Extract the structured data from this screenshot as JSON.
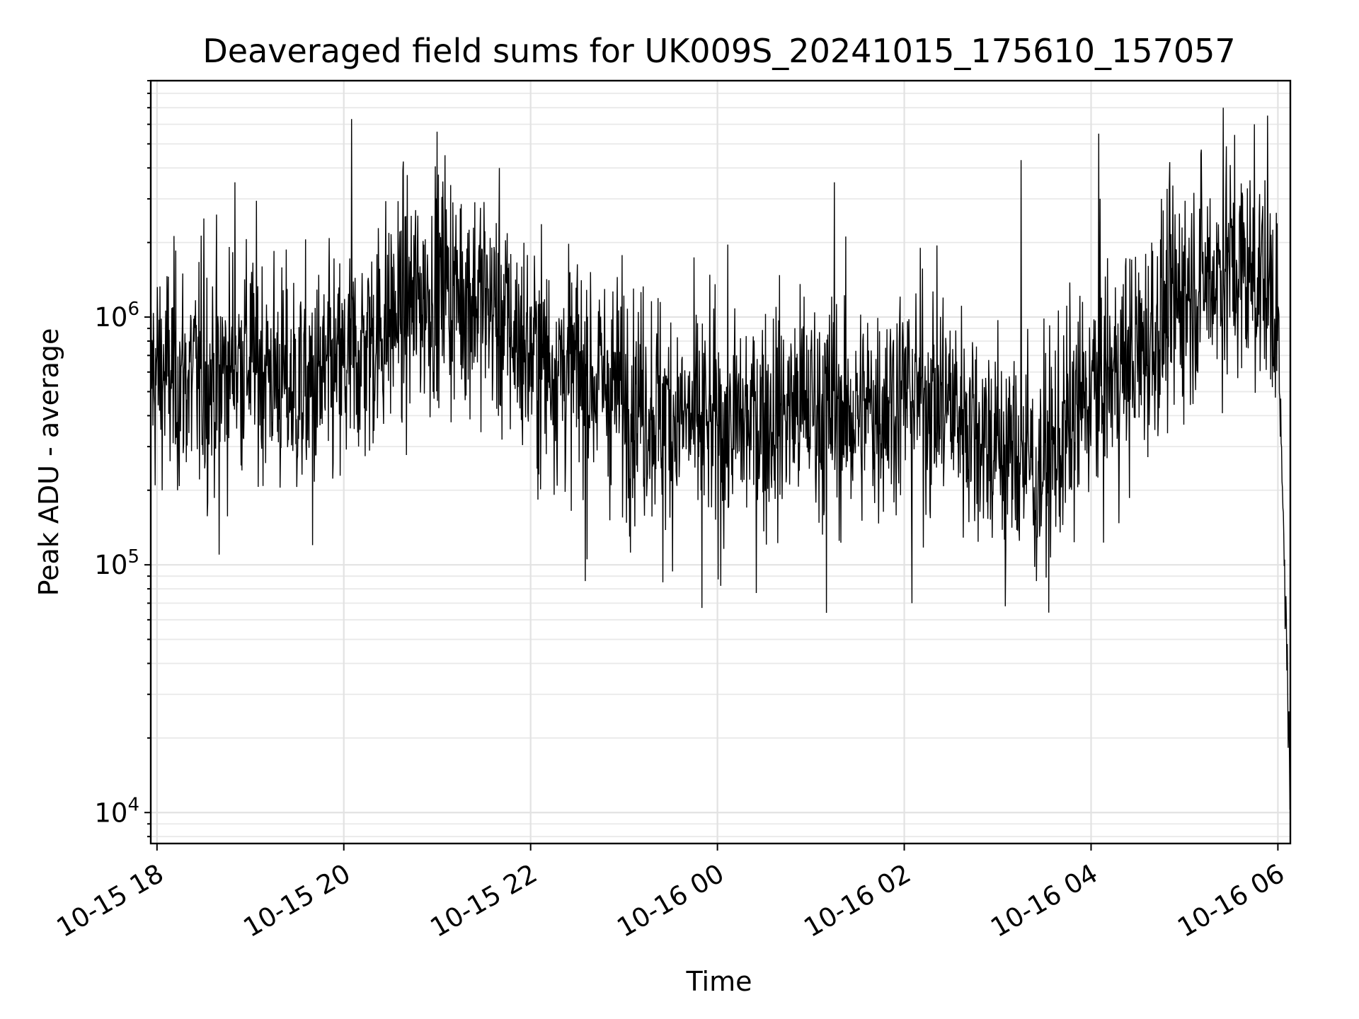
{
  "chart_data": {
    "type": "line",
    "title": "Deaveraged field sums for UK009S_20241015_175610_157057",
    "xlabel": "Time",
    "ylabel": "Peak ADU - average",
    "x_tick_labels": [
      "10-15 18",
      "10-15 20",
      "10-15 22",
      "10-16 00",
      "10-16 02",
      "10-16 04",
      "10-16 06"
    ],
    "xlim": [
      "2024-10-15 17:56",
      "2024-10-16 06:08"
    ],
    "ylim": [
      7500,
      9000000
    ],
    "yscale": "log",
    "y_ticks": [
      {
        "value": 10000,
        "base": "10",
        "exp": "4"
      },
      {
        "value": 100000,
        "base": "10",
        "exp": "5"
      },
      {
        "value": 1000000,
        "base": "10",
        "exp": "6"
      }
    ],
    "grid": true,
    "line_color": "#000000",
    "series": [
      {
        "x": [
          "2024-10-15 17:56",
          "2024-10-15 18:30",
          "2024-10-15 19:00",
          "2024-10-15 19:30",
          "2024-10-15 20:00",
          "2024-10-15 20:30",
          "2024-10-15 21:00",
          "2024-10-15 21:30",
          "2024-10-15 22:00",
          "2024-10-15 22:30",
          "2024-10-15 23:00",
          "2024-10-15 23:30",
          "2024-10-16 00:00",
          "2024-10-16 00:30",
          "2024-10-16 01:00",
          "2024-10-16 01:30",
          "2024-10-16 02:00",
          "2024-10-16 02:30",
          "2024-10-16 03:00",
          "2024-10-16 03:30",
          "2024-10-16 04:00",
          "2024-10-16 04:30",
          "2024-10-16 05:00",
          "2024-10-16 05:30",
          "2024-10-16 05:55",
          "2024-10-16 06:00",
          "2024-10-16 06:02",
          "2024-10-16 06:04",
          "2024-10-16 06:06",
          "2024-10-16 06:08"
        ],
        "values": [
          600000,
          550000,
          700000,
          500000,
          600000,
          1000000,
          1300000,
          1200000,
          700000,
          600000,
          500000,
          400000,
          350000,
          400000,
          450000,
          400000,
          500000,
          450000,
          300000,
          250000,
          500000,
          700000,
          1300000,
          1600000,
          1400000,
          1100000,
          300000,
          110000,
          40000,
          10000
        ],
        "peaks": [
          {
            "x": "2024-10-15 18:30",
            "y": 2500000
          },
          {
            "x": "2024-10-15 18:50",
            "y": 3500000
          },
          {
            "x": "2024-10-15 20:05",
            "y": 6300000
          },
          {
            "x": "2024-10-15 21:00",
            "y": 5600000
          },
          {
            "x": "2024-10-15 21:05",
            "y": 4500000
          },
          {
            "x": "2024-10-15 23:50",
            "y": 2300000
          },
          {
            "x": "2024-10-16 01:15",
            "y": 3500000
          },
          {
            "x": "2024-10-16 03:15",
            "y": 4300000
          },
          {
            "x": "2024-10-16 04:05",
            "y": 5500000
          },
          {
            "x": "2024-10-16 05:25",
            "y": 7000000
          },
          {
            "x": "2024-10-16 05:45",
            "y": 6000000
          }
        ],
        "troughs": [
          {
            "x": "2024-10-15 18:40",
            "y": 110000
          },
          {
            "x": "2024-10-15 19:40",
            "y": 120000
          },
          {
            "x": "2024-10-15 22:35",
            "y": 86000
          },
          {
            "x": "2024-10-15 23:25",
            "y": 85000
          },
          {
            "x": "2024-10-15 23:50",
            "y": 67000
          },
          {
            "x": "2024-10-16 01:10",
            "y": 64000
          },
          {
            "x": "2024-10-16 02:05",
            "y": 70000
          },
          {
            "x": "2024-10-16 03:05",
            "y": 68000
          },
          {
            "x": "2024-10-16 03:25",
            "y": 86000
          }
        ]
      }
    ]
  }
}
